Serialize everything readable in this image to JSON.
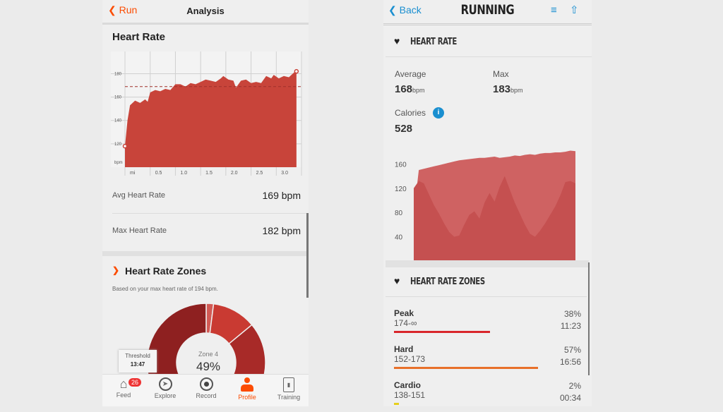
{
  "left": {
    "back_label": "Run",
    "title": "Analysis",
    "section_title": "Heart Rate",
    "avg_label": "Avg Heart Rate",
    "avg_value": "169 bpm",
    "max_label": "Max Heart Rate",
    "max_value": "182 bpm",
    "zones_title": "Heart Rate Zones",
    "zones_subtitle": "Based on your max heart rate of 194 bpm.",
    "tooltip": {
      "label": "Threshold",
      "value": "13:47"
    },
    "donut_center": {
      "label": "Zone 4",
      "value": "49%"
    },
    "nav": [
      {
        "label": "Feed",
        "icon": "home-icon",
        "badge": "26"
      },
      {
        "label": "Explore",
        "icon": "compass-icon"
      },
      {
        "label": "Record",
        "icon": "record-icon"
      },
      {
        "label": "Profile",
        "icon": "person-icon",
        "active": true
      },
      {
        "label": "Training",
        "icon": "clipboard-chart-icon"
      }
    ],
    "accent": "#fc4c02"
  },
  "right": {
    "back_label": "Back",
    "title": "RUNNING",
    "section_title": "HEART RATE",
    "average_label": "Average",
    "average_value": "168",
    "average_unit": "bpm",
    "max_label": "Max",
    "max_value": "183",
    "max_unit": "bpm",
    "calories_label": "Calories",
    "calories_value": "528",
    "zones_title": "HEART RATE ZONES",
    "zones": [
      {
        "name": "Peak",
        "range": "174-∞",
        "percent": "38%",
        "pct": 38,
        "time": "11:23",
        "color": "#d9262b"
      },
      {
        "name": "Hard",
        "range": "152-173",
        "percent": "57%",
        "pct": 57,
        "time": "16:56",
        "color": "#e8702a"
      },
      {
        "name": "Cardio",
        "range": "138-151",
        "percent": "2%",
        "pct": 2,
        "time": "00:34",
        "color": "#e6cf1c"
      }
    ],
    "accent": "#1a8fd0"
  },
  "chart_data": [
    {
      "type": "area",
      "ylabel": "bpm",
      "xlabel": "mi",
      "xlim": [
        0,
        3.5
      ],
      "ylim": [
        100,
        199
      ],
      "xticks": [
        "mi",
        "0.5",
        "1.0",
        "1.5",
        "2.0",
        "2.5",
        "3.0"
      ],
      "yticks": [
        120,
        140,
        160,
        180
      ],
      "grid": true,
      "average_line": 169,
      "x": [
        0,
        0.05,
        0.1,
        0.2,
        0.3,
        0.4,
        0.45,
        0.5,
        0.6,
        0.7,
        0.8,
        0.9,
        1.0,
        1.1,
        1.2,
        1.3,
        1.4,
        1.5,
        1.6,
        1.7,
        1.8,
        1.9,
        1.95,
        2.05,
        2.15,
        2.2,
        2.3,
        2.4,
        2.5,
        2.6,
        2.7,
        2.8,
        2.9,
        2.95,
        3.05,
        3.15,
        3.25,
        3.35,
        3.4
      ],
      "y": [
        118,
        140,
        153,
        157,
        155,
        158,
        156,
        164,
        166,
        165,
        167,
        166,
        171,
        171,
        169,
        172,
        171,
        173,
        175,
        174,
        173,
        176,
        178,
        175,
        174,
        168,
        174,
        175,
        172,
        173,
        172,
        178,
        176,
        179,
        176,
        178,
        177,
        181,
        182
      ],
      "color": "#c8443a"
    },
    {
      "type": "area",
      "yticks": [
        40,
        80,
        120,
        160
      ],
      "ylim": [
        0,
        186
      ],
      "series": [
        {
          "values": [
            78,
            150,
            152,
            154,
            156,
            158,
            160,
            162,
            164,
            166,
            167,
            168,
            169,
            170,
            170,
            171,
            172,
            170,
            171,
            172,
            174,
            173,
            175,
            176,
            175,
            177,
            178,
            178,
            179,
            179,
            180,
            182,
            181
          ]
        },
        {
          "values": [
            120,
            132,
            128,
            110,
            92,
            78,
            62,
            48,
            40,
            42,
            60,
            76,
            82,
            70,
            96,
            112,
            98,
            122,
            140,
            118,
            96,
            78,
            60,
            45,
            40,
            50,
            62,
            76,
            90,
            108,
            130,
            132,
            128
          ]
        }
      ],
      "colors": [
        "#cf6262",
        "#c55050"
      ]
    },
    {
      "type": "pie",
      "series": [
        {
          "name": "Zone 4",
          "value": 0.49,
          "color": "#8e2020"
        },
        {
          "value": 0.02,
          "color": "#d25a55"
        },
        {
          "value": 0.12,
          "color": "#c93a32"
        },
        {
          "value": 0.37,
          "color": "#a82a28"
        }
      ]
    }
  ]
}
